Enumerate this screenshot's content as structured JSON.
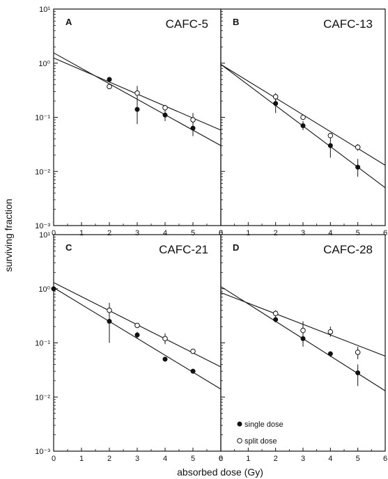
{
  "chart_data": [
    {
      "type": "scatter",
      "panel": "A",
      "title": "CAFC-5",
      "xlim": [
        0,
        6
      ],
      "ylim": [
        0.001,
        10
      ],
      "yscale": "log",
      "x_ticks": [
        "0",
        "1",
        "2",
        "3",
        "4",
        "5",
        "6"
      ],
      "y_ticks": [
        "10¹",
        "10⁰",
        "10⁻¹",
        "10⁻²",
        "10⁻³"
      ],
      "series": [
        {
          "name": "single dose",
          "marker": "filled-circle",
          "points": [
            [
              2,
              0.5
            ],
            [
              3,
              0.14
            ],
            [
              4,
              0.11
            ],
            [
              5,
              0.063
            ]
          ],
          "err_low": [
            0.45,
            0.075,
            0.085,
            0.045
          ],
          "err_high": [
            0.56,
            0.26,
            0.14,
            0.09
          ],
          "fit": [
            [
              0,
              1.55
            ],
            [
              6,
              0.03
            ]
          ]
        },
        {
          "name": "split dose",
          "marker": "open-circle",
          "points": [
            [
              2,
              0.37
            ],
            [
              3,
              0.28
            ],
            [
              4,
              0.15
            ],
            [
              5,
              0.09
            ]
          ],
          "err_low": [
            0.34,
            0.2,
            0.13,
            0.07
          ],
          "err_high": [
            0.41,
            0.38,
            0.17,
            0.12
          ],
          "fit": [
            [
              0,
              1.25
            ],
            [
              6,
              0.058
            ]
          ]
        }
      ]
    },
    {
      "type": "scatter",
      "panel": "B",
      "title": "CAFC-13",
      "xlim": [
        0,
        6
      ],
      "ylim": [
        0.001,
        10
      ],
      "yscale": "log",
      "x_ticks": [
        "0",
        "1",
        "2",
        "3",
        "4",
        "5",
        "6"
      ],
      "y_ticks": [],
      "series": [
        {
          "name": "single dose",
          "marker": "filled-circle",
          "points": [
            [
              2,
              0.18
            ],
            [
              3,
              0.07
            ],
            [
              4,
              0.03
            ],
            [
              5,
              0.012
            ]
          ],
          "err_low": [
            0.12,
            0.058,
            0.018,
            0.008
          ],
          "err_high": [
            0.24,
            0.085,
            0.045,
            0.017
          ],
          "fit": [
            [
              0,
              0.95
            ],
            [
              6,
              0.005
            ]
          ]
        },
        {
          "name": "split dose",
          "marker": "open-circle",
          "points": [
            [
              2,
              0.24
            ],
            [
              3,
              0.1
            ],
            [
              4,
              0.046
            ],
            [
              5,
              0.028
            ]
          ],
          "err_low": [
            0.2,
            0.092,
            0.041,
            0.024
          ],
          "err_high": [
            0.28,
            0.11,
            0.05,
            0.032
          ],
          "fit": [
            [
              0,
              0.95
            ],
            [
              6,
              0.013
            ]
          ]
        }
      ]
    },
    {
      "type": "scatter",
      "panel": "C",
      "title": "CAFC-21",
      "xlim": [
        0,
        6
      ],
      "ylim": [
        0.001,
        10
      ],
      "yscale": "log",
      "x_ticks": [
        "0",
        "1",
        "2",
        "3",
        "4",
        "5",
        "6"
      ],
      "y_ticks": [
        "10¹",
        "10⁰",
        "10⁻¹",
        "10⁻²",
        "10⁻³"
      ],
      "series": [
        {
          "name": "single dose",
          "marker": "filled-circle",
          "points": [
            [
              0,
              1.0
            ],
            [
              2,
              0.25
            ],
            [
              3,
              0.14
            ],
            [
              4,
              0.05
            ],
            [
              5,
              0.03
            ]
          ],
          "err_low": [
            0.9,
            0.1,
            0.12,
            0.045,
            0.027
          ],
          "err_high": [
            1.1,
            0.36,
            0.16,
            0.055,
            0.033
          ],
          "fit": [
            [
              0,
              1.05
            ],
            [
              6,
              0.014
            ]
          ]
        },
        {
          "name": "split dose",
          "marker": "open-circle",
          "points": [
            [
              2,
              0.4
            ],
            [
              3,
              0.21
            ],
            [
              4,
              0.12
            ],
            [
              5,
              0.07
            ]
          ],
          "err_low": [
            0.3,
            0.19,
            0.095,
            0.063
          ],
          "err_high": [
            0.55,
            0.23,
            0.15,
            0.077
          ],
          "fit": [
            [
              0,
              1.3
            ],
            [
              6,
              0.036
            ]
          ]
        }
      ]
    },
    {
      "type": "scatter",
      "panel": "D",
      "title": "CAFC-28",
      "xlim": [
        0,
        6
      ],
      "ylim": [
        0.001,
        10
      ],
      "yscale": "log",
      "x_ticks": [
        "0",
        "1",
        "2",
        "3",
        "4",
        "5",
        "6"
      ],
      "y_ticks": [],
      "series": [
        {
          "name": "single dose",
          "marker": "filled-circle",
          "points": [
            [
              2,
              0.27
            ],
            [
              3,
              0.12
            ],
            [
              4,
              0.063
            ],
            [
              5,
              0.028
            ]
          ],
          "err_low": [
            0.24,
            0.085,
            0.055,
            0.016
          ],
          "err_high": [
            0.3,
            0.15,
            0.07,
            0.04
          ],
          "fit": [
            [
              0,
              1.1
            ],
            [
              6,
              0.013
            ]
          ]
        },
        {
          "name": "split dose",
          "marker": "open-circle",
          "points": [
            [
              2,
              0.35
            ],
            [
              3,
              0.17
            ],
            [
              4,
              0.16
            ],
            [
              5,
              0.067
            ]
          ],
          "err_low": [
            0.3,
            0.12,
            0.13,
            0.05
          ],
          "err_high": [
            0.4,
            0.25,
            0.2,
            0.085
          ],
          "fit": [
            [
              0,
              0.85
            ],
            [
              6,
              0.057
            ]
          ]
        }
      ]
    }
  ],
  "ylabel": "surviving fraction",
  "xlabel": "absorbed dose (Gy)",
  "legend": {
    "single": "single dose",
    "split": "split dose",
    "location": "bottom-left of panel D"
  }
}
